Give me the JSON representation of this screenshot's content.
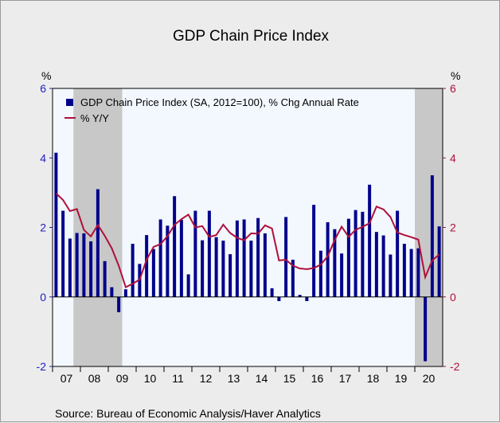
{
  "chart_data": {
    "type": "bar",
    "title": "GDP Chain Price Index",
    "source": "Source:  Bureau of Economic Analysis/Haver Analytics",
    "left_unit": "%",
    "right_unit": "%",
    "ylim": [
      -2,
      6
    ],
    "yticks": [
      "-2",
      "0",
      "2",
      "4",
      "6"
    ],
    "grid": false,
    "legend_placement": "top-left",
    "colors": {
      "bar": "#00008b",
      "line": "#b0103a",
      "left_axis": "#1f1fbf",
      "right_axis": "#b0103a",
      "plot_bg": "#f3f8ff",
      "recession": "#c8c8c8"
    },
    "x_start_year": 2007,
    "years": [
      "07",
      "08",
      "09",
      "10",
      "11",
      "12",
      "13",
      "14",
      "15",
      "16",
      "17",
      "18",
      "19",
      "20"
    ],
    "recession_periods": [
      {
        "start": "2007-Q4",
        "end": "2009-Q2"
      },
      {
        "start": "2020-Q1",
        "end": "2020-Q4"
      }
    ],
    "series": [
      {
        "name": "GDP Chain Price Index (SA, 2012=100), % Chg Annual Rate",
        "type": "bar",
        "values": [
          4.15,
          2.48,
          1.68,
          1.84,
          1.83,
          1.6,
          3.1,
          1.03,
          0.28,
          -0.44,
          0.22,
          1.53,
          0.95,
          1.78,
          1.38,
          2.23,
          2.05,
          2.9,
          2.22,
          0.65,
          2.48,
          1.63,
          2.48,
          1.72,
          1.62,
          1.23,
          2.2,
          2.23,
          1.62,
          2.27,
          1.83,
          0.25,
          -0.12,
          2.3,
          1.07,
          0.06,
          -0.12,
          2.65,
          1.33,
          2.15,
          1.95,
          1.25,
          2.25,
          2.5,
          2.45,
          3.23,
          1.87,
          1.77,
          1.22,
          2.48,
          1.53,
          1.38,
          1.4,
          -1.85,
          3.5,
          2.03
        ]
      },
      {
        "name": "% Y/Y",
        "type": "line",
        "values": [
          2.98,
          2.79,
          2.47,
          2.53,
          1.93,
          1.74,
          2.07,
          1.76,
          1.4,
          0.9,
          0.28,
          0.38,
          0.5,
          1.07,
          1.44,
          1.52,
          1.75,
          2.07,
          2.24,
          2.37,
          2.0,
          2.04,
          1.73,
          1.78,
          2.08,
          1.84,
          1.7,
          1.63,
          1.83,
          1.82,
          2.06,
          1.97,
          1.05,
          1.07,
          0.9,
          0.82,
          0.8,
          0.83,
          0.93,
          1.17,
          1.64,
          2.02,
          1.73,
          1.93,
          2.02,
          2.12,
          2.6,
          2.52,
          2.3,
          1.85,
          1.78,
          1.72,
          1.65,
          0.57,
          1.05,
          1.22
        ]
      }
    ]
  }
}
